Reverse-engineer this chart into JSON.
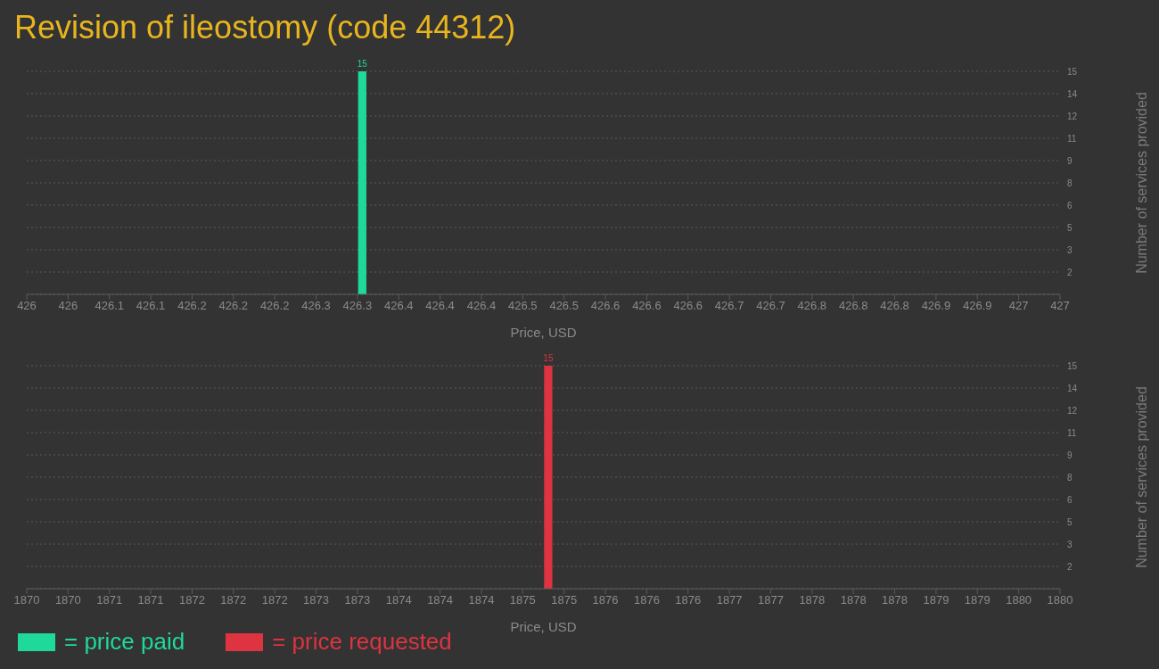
{
  "chart_data": [
    {
      "type": "histogram",
      "title": "Revision of ileostomy (code 44312)",
      "xlabel": "Price, USD",
      "ylabel": "Number of services provided",
      "bins": [
        426.321,
        426.329
      ],
      "series": [
        {
          "name": "= price paid",
          "color": "#1fd99a",
          "values": [
            15
          ]
        }
      ],
      "xlim": [
        426,
        427
      ],
      "xticks": [
        426,
        {
          "value": 426.04,
          "label": "426"
        },
        {
          "value": 426.08,
          "label": "426.1"
        },
        {
          "value": 426.12,
          "label": "426.1"
        },
        {
          "value": 426.16,
          "label": "426.2"
        },
        426.2,
        {
          "value": 426.24,
          "label": "426.2"
        },
        {
          "value": 426.28,
          "label": "426.3"
        },
        {
          "value": 426.32,
          "label": "426.3"
        },
        {
          "value": 426.36,
          "label": "426.4"
        },
        426.4,
        {
          "value": 426.44,
          "label": "426.4"
        },
        {
          "value": 426.48,
          "label": "426.5"
        },
        {
          "value": 426.52,
          "label": "426.5"
        },
        {
          "value": 426.56,
          "label": "426.6"
        },
        426.6,
        {
          "value": 426.64,
          "label": "426.6"
        },
        {
          "value": 426.68,
          "label": "426.7"
        },
        {
          "value": 426.72,
          "label": "426.7"
        },
        {
          "value": 426.76,
          "label": "426.8"
        },
        426.8,
        {
          "value": 426.84,
          "label": "426.8"
        },
        {
          "value": 426.88,
          "label": "426.9"
        },
        {
          "value": 426.92,
          "label": "426.9"
        },
        {
          "value": 426.96,
          "label": "427"
        },
        427
      ],
      "ylim": [
        0,
        15
      ],
      "yticks": [
        {
          "value": 1.5,
          "label": "2"
        },
        3,
        {
          "value": 4.5,
          "label": "5"
        },
        6,
        {
          "value": 7.5,
          "label": "8"
        },
        9,
        {
          "value": 10.5,
          "label": "11"
        },
        12,
        {
          "value": 13.5,
          "label": "14"
        },
        15
      ],
      "grid": "y",
      "data_labels": true,
      "legend": "bottom"
    },
    {
      "type": "histogram",
      "xlabel": "Price, USD",
      "ylabel": "Number of services provided",
      "bins": [
        1875.01,
        1875.09
      ],
      "series": [
        {
          "name": "= price requested",
          "color": "#de3340",
          "values": [
            15
          ]
        }
      ],
      "xlim": [
        1870,
        1880
      ],
      "xticks": [
        1870,
        {
          "value": 1870.4,
          "label": "1870"
        },
        {
          "value": 1870.8,
          "label": "1871"
        },
        {
          "value": 1871.2,
          "label": "1871"
        },
        {
          "value": 1871.6,
          "label": "1872"
        },
        1872,
        {
          "value": 1872.4,
          "label": "1872"
        },
        {
          "value": 1872.8,
          "label": "1873"
        },
        {
          "value": 1873.2,
          "label": "1873"
        },
        {
          "value": 1873.6,
          "label": "1874"
        },
        1874,
        {
          "value": 1874.4,
          "label": "1874"
        },
        {
          "value": 1874.8,
          "label": "1875"
        },
        {
          "value": 1875.2,
          "label": "1875"
        },
        {
          "value": 1875.6,
          "label": "1876"
        },
        1876,
        {
          "value": 1876.4,
          "label": "1876"
        },
        {
          "value": 1876.8,
          "label": "1877"
        },
        {
          "value": 1877.2,
          "label": "1877"
        },
        {
          "value": 1877.6,
          "label": "1878"
        },
        1878,
        {
          "value": 1878.4,
          "label": "1878"
        },
        {
          "value": 1878.8,
          "label": "1879"
        },
        {
          "value": 1879.2,
          "label": "1879"
        },
        {
          "value": 1879.6,
          "label": "1880"
        },
        1880
      ],
      "ylim": [
        0,
        15
      ],
      "yticks": [
        {
          "value": 1.5,
          "label": "2"
        },
        3,
        {
          "value": 4.5,
          "label": "5"
        },
        6,
        {
          "value": 7.5,
          "label": "8"
        },
        9,
        {
          "value": 10.5,
          "label": "11"
        },
        12,
        {
          "value": 13.5,
          "label": "14"
        },
        15
      ],
      "grid": "y",
      "data_labels": true,
      "legend": "bottom"
    }
  ]
}
